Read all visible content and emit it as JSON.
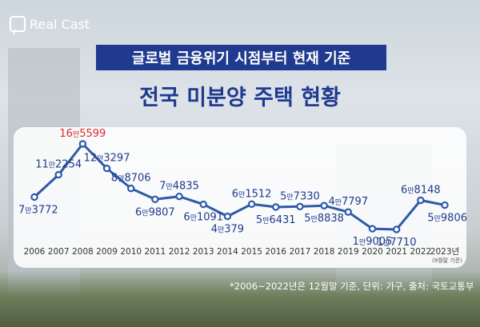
{
  "brand": {
    "name": "Real Cast"
  },
  "title_line1": "글로벌 금융위기 시점부터 현재 기준",
  "title_line2": "전국 미분양 주택 현황",
  "footnote": "*2006~2022년은 12월말 기준, 단위: 가구, 출처: 국토교통부",
  "colors": {
    "line": "#2f5aa8",
    "peak_label": "#d62b2b",
    "label": "#1f3a8f",
    "title_bg": "#1f3a8f"
  },
  "chart_data": {
    "type": "line",
    "x": [
      "2006",
      "2007",
      "2008",
      "2009",
      "2010",
      "2011",
      "2012",
      "2013",
      "2014",
      "2015",
      "2016",
      "2017",
      "2018",
      "2019",
      "2020",
      "2021",
      "2022",
      "2023년"
    ],
    "x_sub": [
      "",
      "",
      "",
      "",
      "",
      "",
      "",
      "",
      "",
      "",
      "",
      "",
      "",
      "",
      "",
      "",
      "",
      "(9월말 기준)"
    ],
    "values": [
      73772,
      112254,
      165599,
      123297,
      88706,
      69807,
      74835,
      61091,
      40379,
      61512,
      56431,
      57330,
      58838,
      47797,
      19005,
      17710,
      68148,
      59806
    ],
    "labels": [
      {
        "man": "7",
        "rest": "3772",
        "pos": "below"
      },
      {
        "man": "11",
        "rest": "2254",
        "pos": "above"
      },
      {
        "man": "16",
        "rest": "5599",
        "pos": "above",
        "highlight": true
      },
      {
        "man": "12",
        "rest": "3297",
        "pos": "above"
      },
      {
        "man": "8",
        "rest": "8706",
        "pos": "above"
      },
      {
        "man": "6",
        "rest": "9807",
        "pos": "below"
      },
      {
        "man": "7",
        "rest": "4835",
        "pos": "above"
      },
      {
        "man": "6",
        "rest": "1091",
        "pos": "below"
      },
      {
        "man": "4",
        "rest": "379",
        "pos": "below"
      },
      {
        "man": "6",
        "rest": "1512",
        "pos": "above"
      },
      {
        "man": "5",
        "rest": "6431",
        "pos": "below"
      },
      {
        "man": "5",
        "rest": "7330",
        "pos": "above"
      },
      {
        "man": "5",
        "rest": "8838",
        "pos": "below"
      },
      {
        "man": "4",
        "rest": "7797",
        "pos": "above"
      },
      {
        "man": "1",
        "rest": "9005",
        "pos": "below"
      },
      {
        "man": "1",
        "rest": "7710",
        "pos": "below"
      },
      {
        "man": "6",
        "rest": "8148",
        "pos": "above"
      },
      {
        "man": "5",
        "rest": "9806",
        "pos": "below"
      }
    ],
    "unit_char": "만"
  }
}
